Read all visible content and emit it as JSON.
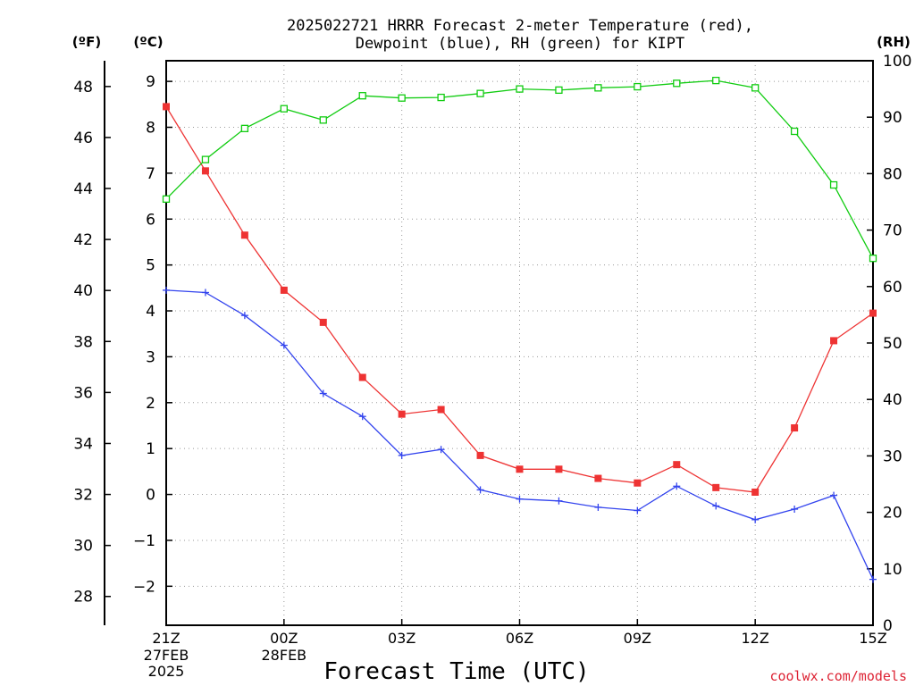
{
  "chart_data": {
    "type": "line",
    "title_line1": "2025022721 HRRR Forecast 2-meter Temperature (red),",
    "title_line2": "Dewpoint (blue), RH (green) for KIPT",
    "xlabel": "Forecast Time (UTC)",
    "left_outer_unit": "(ºF)",
    "left_inner_unit": "(ºC)",
    "right_unit": "(RH)",
    "watermark": "coolwx.com/models",
    "x_ticks": [
      {
        "hour": 0,
        "label": "21Z",
        "sub1": "27FEB",
        "sub2": "2025"
      },
      {
        "hour": 3,
        "label": "00Z",
        "sub1": "28FEB",
        "sub2": ""
      },
      {
        "hour": 6,
        "label": "03Z",
        "sub1": "",
        "sub2": ""
      },
      {
        "hour": 9,
        "label": "06Z",
        "sub1": "",
        "sub2": ""
      },
      {
        "hour": 12,
        "label": "09Z",
        "sub1": "",
        "sub2": ""
      },
      {
        "hour": 15,
        "label": "12Z",
        "sub1": "",
        "sub2": ""
      },
      {
        "hour": 18,
        "label": "15Z",
        "sub1": "",
        "sub2": ""
      }
    ],
    "x_hours": [
      0,
      1,
      2,
      3,
      4,
      5,
      6,
      7,
      8,
      9,
      10,
      11,
      12,
      13,
      14,
      15,
      16,
      17,
      18
    ],
    "xlim": [
      0,
      18
    ],
    "celsius_lim": [
      -2.85,
      9.45
    ],
    "celsius_ticks": [
      "-2",
      "-1",
      "0",
      "1",
      "2",
      "3",
      "4",
      "5",
      "6",
      "7",
      "8",
      "9"
    ],
    "fahrenheit_ticks": [
      "28",
      "30",
      "32",
      "34",
      "36",
      "38",
      "40",
      "42",
      "44",
      "46",
      "48"
    ],
    "rh_lim": [
      0,
      100
    ],
    "rh_ticks": [
      "0",
      "10",
      "20",
      "30",
      "40",
      "50",
      "60",
      "70",
      "80",
      "90",
      "100"
    ],
    "grid": true,
    "series": [
      {
        "key": "temperature",
        "color": "#ee3333",
        "marker": "filled-square",
        "axis": "celsius",
        "values": [
          8.45,
          7.05,
          5.65,
          4.45,
          3.75,
          2.55,
          1.75,
          1.85,
          0.85,
          0.55,
          0.55,
          0.35,
          0.25,
          0.65,
          0.15,
          0.05,
          1.45,
          3.35,
          3.95
        ]
      },
      {
        "key": "dewpoint",
        "color": "#3344ee",
        "marker": "plus",
        "axis": "celsius",
        "values": [
          4.45,
          4.4,
          3.9,
          3.25,
          2.2,
          1.7,
          0.85,
          0.98,
          0.1,
          -0.1,
          -0.14,
          -0.28,
          -0.35,
          0.18,
          -0.25,
          -0.55,
          -0.32,
          -0.02,
          -1.85
        ]
      },
      {
        "key": "rh",
        "color": "#11cc11",
        "marker": "open-square",
        "axis": "rh",
        "values": [
          75.5,
          82.5,
          88,
          91.5,
          89.5,
          93.8,
          93.4,
          93.5,
          94.2,
          95,
          94.8,
          95.2,
          95.4,
          96,
          96.5,
          95.2,
          87.5,
          78,
          65
        ]
      }
    ]
  }
}
